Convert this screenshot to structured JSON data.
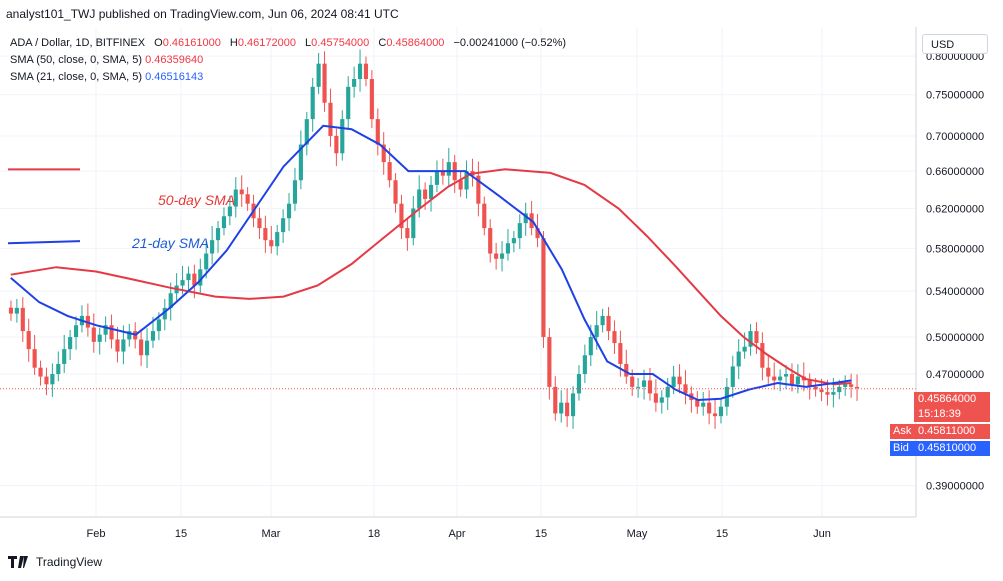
{
  "header": {
    "publish_line": "analyst101_TWJ published on TradingView.com, Jun 06, 2024 08:41 UTC"
  },
  "legend": {
    "symbol": "ADA / Dollar, 1D, BITFINEX",
    "ohlc": {
      "O": "0.46161000",
      "H": "0.46172000",
      "L": "0.45754000",
      "C": "0.45864000",
      "change": "−0.00241000 (−0.52%)"
    },
    "sma50_label": "SMA (50, close, 0, SMA, 5)",
    "sma50_value": "0.46359640",
    "sma21_label": "SMA (21, close, 0, SMA, 5)",
    "sma21_value": "0.46516143"
  },
  "currency": "USD",
  "annotations": {
    "sma50": "50-day SMA",
    "sma21": "21-day SMA"
  },
  "price_tags": {
    "last": "0.45864000",
    "countdown": "15:18:39",
    "ask_label": "Ask",
    "ask": "0.45811000",
    "bid_label": "Bid",
    "bid": "0.45810000"
  },
  "footer": {
    "brand": "TradingView"
  },
  "colors": {
    "up": "#26a69a",
    "down": "#ef5350",
    "sma50": "#e53945",
    "sma21": "#1e40e6",
    "grid": "#f0f3fa"
  },
  "chart_data": {
    "type": "candlestick",
    "title": "ADA / Dollar, 1D, BITFINEX",
    "y_ticks": [
      "0.80000000",
      "0.75000000",
      "0.70000000",
      "0.66000000",
      "0.62000000",
      "0.58000000",
      "0.54000000",
      "0.50000000",
      "0.47000000",
      "0.39000000"
    ],
    "x_ticks": [
      "Feb",
      "15",
      "Mar",
      "18",
      "Apr",
      "15",
      "May",
      "15",
      "Jun"
    ],
    "ylim": [
      0.37,
      0.84
    ],
    "y_scale": "log",
    "grid": true,
    "series": [
      {
        "name": "SMA (50, close, 0, SMA, 5)",
        "type": "line",
        "color": "#e53945",
        "points": [
          [
            0,
            0.555
          ],
          [
            8,
            0.562
          ],
          [
            15,
            0.558
          ],
          [
            22,
            0.55
          ],
          [
            28,
            0.543
          ],
          [
            36,
            0.535
          ],
          [
            42,
            0.533
          ],
          [
            48,
            0.535
          ],
          [
            54,
            0.545
          ],
          [
            60,
            0.565
          ],
          [
            66,
            0.592
          ],
          [
            72,
            0.62
          ],
          [
            77,
            0.643
          ],
          [
            81,
            0.657
          ],
          [
            87,
            0.662
          ],
          [
            95,
            0.658
          ],
          [
            101,
            0.645
          ],
          [
            107,
            0.62
          ],
          [
            112,
            0.592
          ],
          [
            117,
            0.563
          ],
          [
            121,
            0.54
          ],
          [
            125,
            0.518
          ],
          [
            129,
            0.5
          ],
          [
            133,
            0.486
          ],
          [
            137,
            0.474
          ],
          [
            140,
            0.466
          ],
          [
            145,
            0.462
          ],
          [
            148,
            0.463
          ]
        ]
      },
      {
        "name": "SMA (21, close, 0, SMA, 5)",
        "type": "line",
        "color": "#1e40e6",
        "points": [
          [
            0,
            0.552
          ],
          [
            5,
            0.53
          ],
          [
            10,
            0.518
          ],
          [
            15,
            0.51
          ],
          [
            22,
            0.502
          ],
          [
            28,
            0.525
          ],
          [
            33,
            0.548
          ],
          [
            38,
            0.578
          ],
          [
            43,
            0.62
          ],
          [
            48,
            0.665
          ],
          [
            55,
            0.712
          ],
          [
            60,
            0.708
          ],
          [
            65,
            0.69
          ],
          [
            70,
            0.66
          ],
          [
            75,
            0.66
          ],
          [
            80,
            0.66
          ],
          [
            86,
            0.633
          ],
          [
            92,
            0.606
          ],
          [
            97,
            0.56
          ],
          [
            101,
            0.515
          ],
          [
            105,
            0.48
          ],
          [
            109,
            0.47
          ],
          [
            113,
            0.47
          ],
          [
            117,
            0.458
          ],
          [
            121,
            0.45
          ],
          [
            125,
            0.451
          ],
          [
            130,
            0.458
          ],
          [
            135,
            0.463
          ],
          [
            140,
            0.46
          ],
          [
            145,
            0.463
          ],
          [
            148,
            0.465
          ]
        ]
      },
      {
        "name": "ADA / Dollar",
        "type": "candlestick",
        "ohlc_path": [
          0.52,
          0.525,
          0.505,
          0.49,
          0.475,
          0.468,
          0.462,
          0.47,
          0.478,
          0.49,
          0.5,
          0.51,
          0.518,
          0.508,
          0.496,
          0.502,
          0.51,
          0.498,
          0.488,
          0.498,
          0.505,
          0.498,
          0.485,
          0.497,
          0.505,
          0.515,
          0.525,
          0.538,
          0.545,
          0.55,
          0.556,
          0.545,
          0.56,
          0.575,
          0.588,
          0.6,
          0.612,
          0.622,
          0.64,
          0.635,
          0.625,
          0.61,
          0.6,
          0.588,
          0.582,
          0.596,
          0.61,
          0.625,
          0.65,
          0.69,
          0.72,
          0.76,
          0.79,
          0.74,
          0.7,
          0.68,
          0.72,
          0.76,
          0.77,
          0.79,
          0.77,
          0.72,
          0.69,
          0.67,
          0.65,
          0.625,
          0.6,
          0.59,
          0.62,
          0.64,
          0.63,
          0.645,
          0.66,
          0.655,
          0.67,
          0.65,
          0.64,
          0.66,
          0.655,
          0.625,
          0.6,
          0.575,
          0.57,
          0.575,
          0.585,
          0.59,
          0.605,
          0.615,
          0.6,
          0.59,
          0.5,
          0.46,
          0.44,
          0.448,
          0.438,
          0.455,
          0.47,
          0.485,
          0.5,
          0.51,
          0.518,
          0.505,
          0.495,
          0.478,
          0.468,
          0.46,
          0.46,
          0.465,
          0.455,
          0.448,
          0.452,
          0.46,
          0.468,
          0.462,
          0.455,
          0.45,
          0.445,
          0.448,
          0.44,
          0.438,
          0.445,
          0.46,
          0.476,
          0.488,
          0.492,
          0.505,
          0.495,
          0.475,
          0.468,
          0.465,
          0.468,
          0.47,
          0.462,
          0.468,
          0.465,
          0.46,
          0.458,
          0.456,
          0.454,
          0.456,
          0.46,
          0.462,
          0.46,
          0.459
        ]
      }
    ]
  }
}
